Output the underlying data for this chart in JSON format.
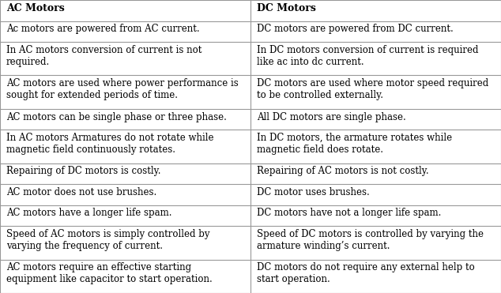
{
  "headers": [
    "AC Motors",
    "DC Motors"
  ],
  "rows": [
    [
      "Ac motors are powered from AC current.",
      "DC motors are powered from DC current."
    ],
    [
      "In AC motors conversion of current is not\nrequired.",
      "In DC motors conversion of current is required\nlike ac into dc current."
    ],
    [
      "AC motors are used where power performance is\nsought for extended periods of time.",
      "DC motors are used where motor speed required\nto be controlled externally."
    ],
    [
      "AC motors can be single phase or three phase.",
      "All DC motors are single phase."
    ],
    [
      "In AC motors Armatures do not rotate while\nmagnetic field continuously rotates.",
      "In DC motors, the armature rotates while\nmagnetic field does rotate."
    ],
    [
      "Repairing of DC motors is costly.",
      "Repairing of AC motors is not costly."
    ],
    [
      "AC motor does not use brushes.",
      "DC motor uses brushes."
    ],
    [
      "AC motors have a longer life spam.",
      "DC motors have not a longer life spam."
    ],
    [
      "Speed of AC motors is simply controlled by\nvarying the frequency of current.",
      "Speed of DC motors is controlled by varying the\narmature winding’s current."
    ],
    [
      "AC motors require an effective starting\nequipment like capacitor to start operation.",
      "DC motors do not require any external help to\nstart operation."
    ]
  ],
  "header_bg": "#ffffff",
  "cell_bg": "#ffffff",
  "border_color": "#999999",
  "text_color": "#000000",
  "header_fontsize": 9,
  "cell_fontsize": 8.5
}
